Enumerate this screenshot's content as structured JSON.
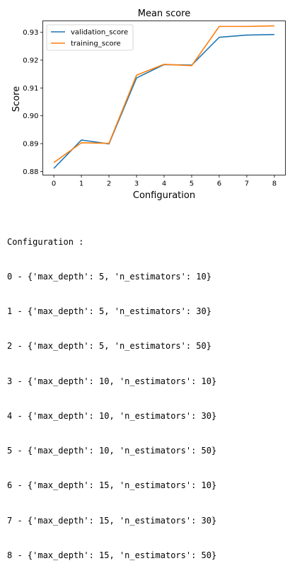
{
  "chart_data": {
    "type": "line",
    "title": "Mean score",
    "xlabel": "Configuration",
    "ylabel": "Score",
    "x": [
      0,
      1,
      2,
      3,
      4,
      5,
      6,
      7,
      8
    ],
    "xlim": [
      -0.4,
      8.4
    ],
    "ylim": [
      0.8787,
      0.9341
    ],
    "xticks": [
      "0",
      "1",
      "2",
      "3",
      "4",
      "5",
      "6",
      "7",
      "8"
    ],
    "yticks": [
      0.88,
      0.89,
      0.9,
      0.91,
      0.92,
      0.93
    ],
    "ytick_labels": [
      "0.88",
      "0.89",
      "0.90",
      "0.91",
      "0.92",
      "0.93"
    ],
    "grid": false,
    "legend": "top-left",
    "series": [
      {
        "name": "validation_score",
        "color": "#1f77b4",
        "values": [
          0.8811,
          0.8913,
          0.8899,
          0.9136,
          0.9184,
          0.9182,
          0.9282,
          0.929,
          0.9292
        ]
      },
      {
        "name": "training_score",
        "color": "#ff7f0e",
        "values": [
          0.8832,
          0.8903,
          0.8901,
          0.9146,
          0.9185,
          0.918,
          0.9321,
          0.9321,
          0.9323
        ]
      }
    ]
  },
  "output": {
    "header": "Configuration :",
    "lines": [
      "0 - {'max_depth': 5, 'n_estimators': 10}",
      "1 - {'max_depth': 5, 'n_estimators': 30}",
      "2 - {'max_depth': 5, 'n_estimators': 50}",
      "3 - {'max_depth': 10, 'n_estimators': 10}",
      "4 - {'max_depth': 10, 'n_estimators': 30}",
      "5 - {'max_depth': 10, 'n_estimators': 50}",
      "6 - {'max_depth': 15, 'n_estimators': 10}",
      "7 - {'max_depth': 15, 'n_estimators': 30}",
      "8 - {'max_depth': 15, 'n_estimators': 50}"
    ]
  }
}
